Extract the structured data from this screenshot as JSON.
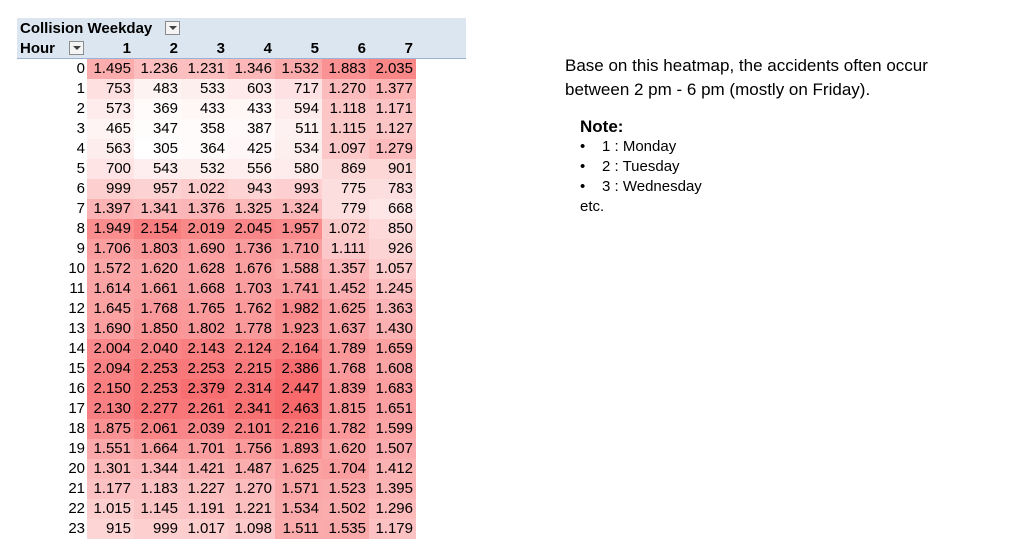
{
  "pivot": {
    "header_label": "Collision Weekday",
    "row_label": "Hour",
    "filter_icon": "dropdown-arrow-icon",
    "colors": {
      "header_bg": "#dce6f1",
      "heat_low": "#ffffff",
      "heat_high": "#f8696b"
    }
  },
  "chart_data": {
    "type": "heatmap",
    "columns": [
      "1",
      "2",
      "3",
      "4",
      "5",
      "6",
      "7"
    ],
    "rows": [
      "0",
      "1",
      "2",
      "3",
      "4",
      "5",
      "6",
      "7",
      "8",
      "9",
      "10",
      "11",
      "12",
      "13",
      "14",
      "15",
      "16",
      "17",
      "18",
      "19",
      "20",
      "21",
      "22",
      "23"
    ],
    "values": [
      [
        1495,
        1236,
        1231,
        1346,
        1532,
        1883,
        2035
      ],
      [
        753,
        483,
        533,
        603,
        717,
        1270,
        1377
      ],
      [
        573,
        369,
        433,
        433,
        594,
        1118,
        1171
      ],
      [
        465,
        347,
        358,
        387,
        511,
        1115,
        1127
      ],
      [
        563,
        305,
        364,
        425,
        534,
        1097,
        1279
      ],
      [
        700,
        543,
        532,
        556,
        580,
        869,
        901
      ],
      [
        999,
        957,
        1022,
        943,
        993,
        775,
        783
      ],
      [
        1397,
        1341,
        1376,
        1325,
        1324,
        779,
        668
      ],
      [
        1949,
        2154,
        2019,
        2045,
        1957,
        1072,
        850
      ],
      [
        1706,
        1803,
        1690,
        1736,
        1710,
        1111,
        926
      ],
      [
        1572,
        1620,
        1628,
        1676,
        1588,
        1357,
        1057
      ],
      [
        1614,
        1661,
        1668,
        1703,
        1741,
        1452,
        1245
      ],
      [
        1645,
        1768,
        1765,
        1762,
        1982,
        1625,
        1363
      ],
      [
        1690,
        1850,
        1802,
        1778,
        1923,
        1637,
        1430
      ],
      [
        2004,
        2040,
        2143,
        2124,
        2164,
        1789,
        1659
      ],
      [
        2094,
        2253,
        2253,
        2215,
        2386,
        1768,
        1608
      ],
      [
        2150,
        2253,
        2379,
        2314,
        2447,
        1839,
        1683
      ],
      [
        2130,
        2277,
        2261,
        2341,
        2463,
        1815,
        1651
      ],
      [
        1875,
        2061,
        2039,
        2101,
        2216,
        1782,
        1599
      ],
      [
        1551,
        1664,
        1701,
        1756,
        1893,
        1620,
        1507
      ],
      [
        1301,
        1344,
        1421,
        1487,
        1625,
        1704,
        1412
      ],
      [
        1177,
        1183,
        1227,
        1270,
        1571,
        1523,
        1395
      ],
      [
        1015,
        1145,
        1191,
        1221,
        1534,
        1502,
        1296
      ],
      [
        915,
        999,
        1017,
        1098,
        1511,
        1535,
        1179
      ]
    ],
    "display_values": [
      [
        "1.495",
        "1.236",
        "1.231",
        "1.346",
        "1.532",
        "1.883",
        "2.035"
      ],
      [
        "753",
        "483",
        "533",
        "603",
        "717",
        "1.270",
        "1.377"
      ],
      [
        "573",
        "369",
        "433",
        "433",
        "594",
        "1.118",
        "1.171"
      ],
      [
        "465",
        "347",
        "358",
        "387",
        "511",
        "1.115",
        "1.127"
      ],
      [
        "563",
        "305",
        "364",
        "425",
        "534",
        "1.097",
        "1.279"
      ],
      [
        "700",
        "543",
        "532",
        "556",
        "580",
        "869",
        "901"
      ],
      [
        "999",
        "957",
        "1.022",
        "943",
        "993",
        "775",
        "783"
      ],
      [
        "1.397",
        "1.341",
        "1.376",
        "1.325",
        "1.324",
        "779",
        "668"
      ],
      [
        "1.949",
        "2.154",
        "2.019",
        "2.045",
        "1.957",
        "1.072",
        "850"
      ],
      [
        "1.706",
        "1.803",
        "1.690",
        "1.736",
        "1.710",
        "1.111",
        "926"
      ],
      [
        "1.572",
        "1.620",
        "1.628",
        "1.676",
        "1.588",
        "1.357",
        "1.057"
      ],
      [
        "1.614",
        "1.661",
        "1.668",
        "1.703",
        "1.741",
        "1.452",
        "1.245"
      ],
      [
        "1.645",
        "1.768",
        "1.765",
        "1.762",
        "1.982",
        "1.625",
        "1.363"
      ],
      [
        "1.690",
        "1.850",
        "1.802",
        "1.778",
        "1.923",
        "1.637",
        "1.430"
      ],
      [
        "2.004",
        "2.040",
        "2.143",
        "2.124",
        "2.164",
        "1.789",
        "1.659"
      ],
      [
        "2.094",
        "2.253",
        "2.253",
        "2.215",
        "2.386",
        "1.768",
        "1.608"
      ],
      [
        "2.150",
        "2.253",
        "2.379",
        "2.314",
        "2.447",
        "1.839",
        "1.683"
      ],
      [
        "2.130",
        "2.277",
        "2.261",
        "2.341",
        "2.463",
        "1.815",
        "1.651"
      ],
      [
        "1.875",
        "2.061",
        "2.039",
        "2.101",
        "2.216",
        "1.782",
        "1.599"
      ],
      [
        "1.551",
        "1.664",
        "1.701",
        "1.756",
        "1.893",
        "1.620",
        "1.507"
      ],
      [
        "1.301",
        "1.344",
        "1.421",
        "1.487",
        "1.625",
        "1.704",
        "1.412"
      ],
      [
        "1.177",
        "1.183",
        "1.227",
        "1.270",
        "1.571",
        "1.523",
        "1.395"
      ],
      [
        "1.015",
        "1.145",
        "1.191",
        "1.221",
        "1.534",
        "1.502",
        "1.296"
      ],
      [
        "915",
        "999",
        "1.017",
        "1.098",
        "1.511",
        "1.535",
        "1.179"
      ]
    ],
    "title": "",
    "xlabel": "Collision Weekday",
    "ylabel": "Hour",
    "color_scale": {
      "low": "#ffffff",
      "high": "#f8696b"
    }
  },
  "notes": {
    "description_line1": "Base on this heatmap, the accidents often occur",
    "description_line2": "between 2 pm - 6 pm (mostly on Friday).",
    "note_title": "Note:",
    "bullet_char": "•",
    "items": [
      "1 : Monday",
      "2 : Tuesday",
      "3 : Wednesday"
    ],
    "etc": "etc."
  }
}
